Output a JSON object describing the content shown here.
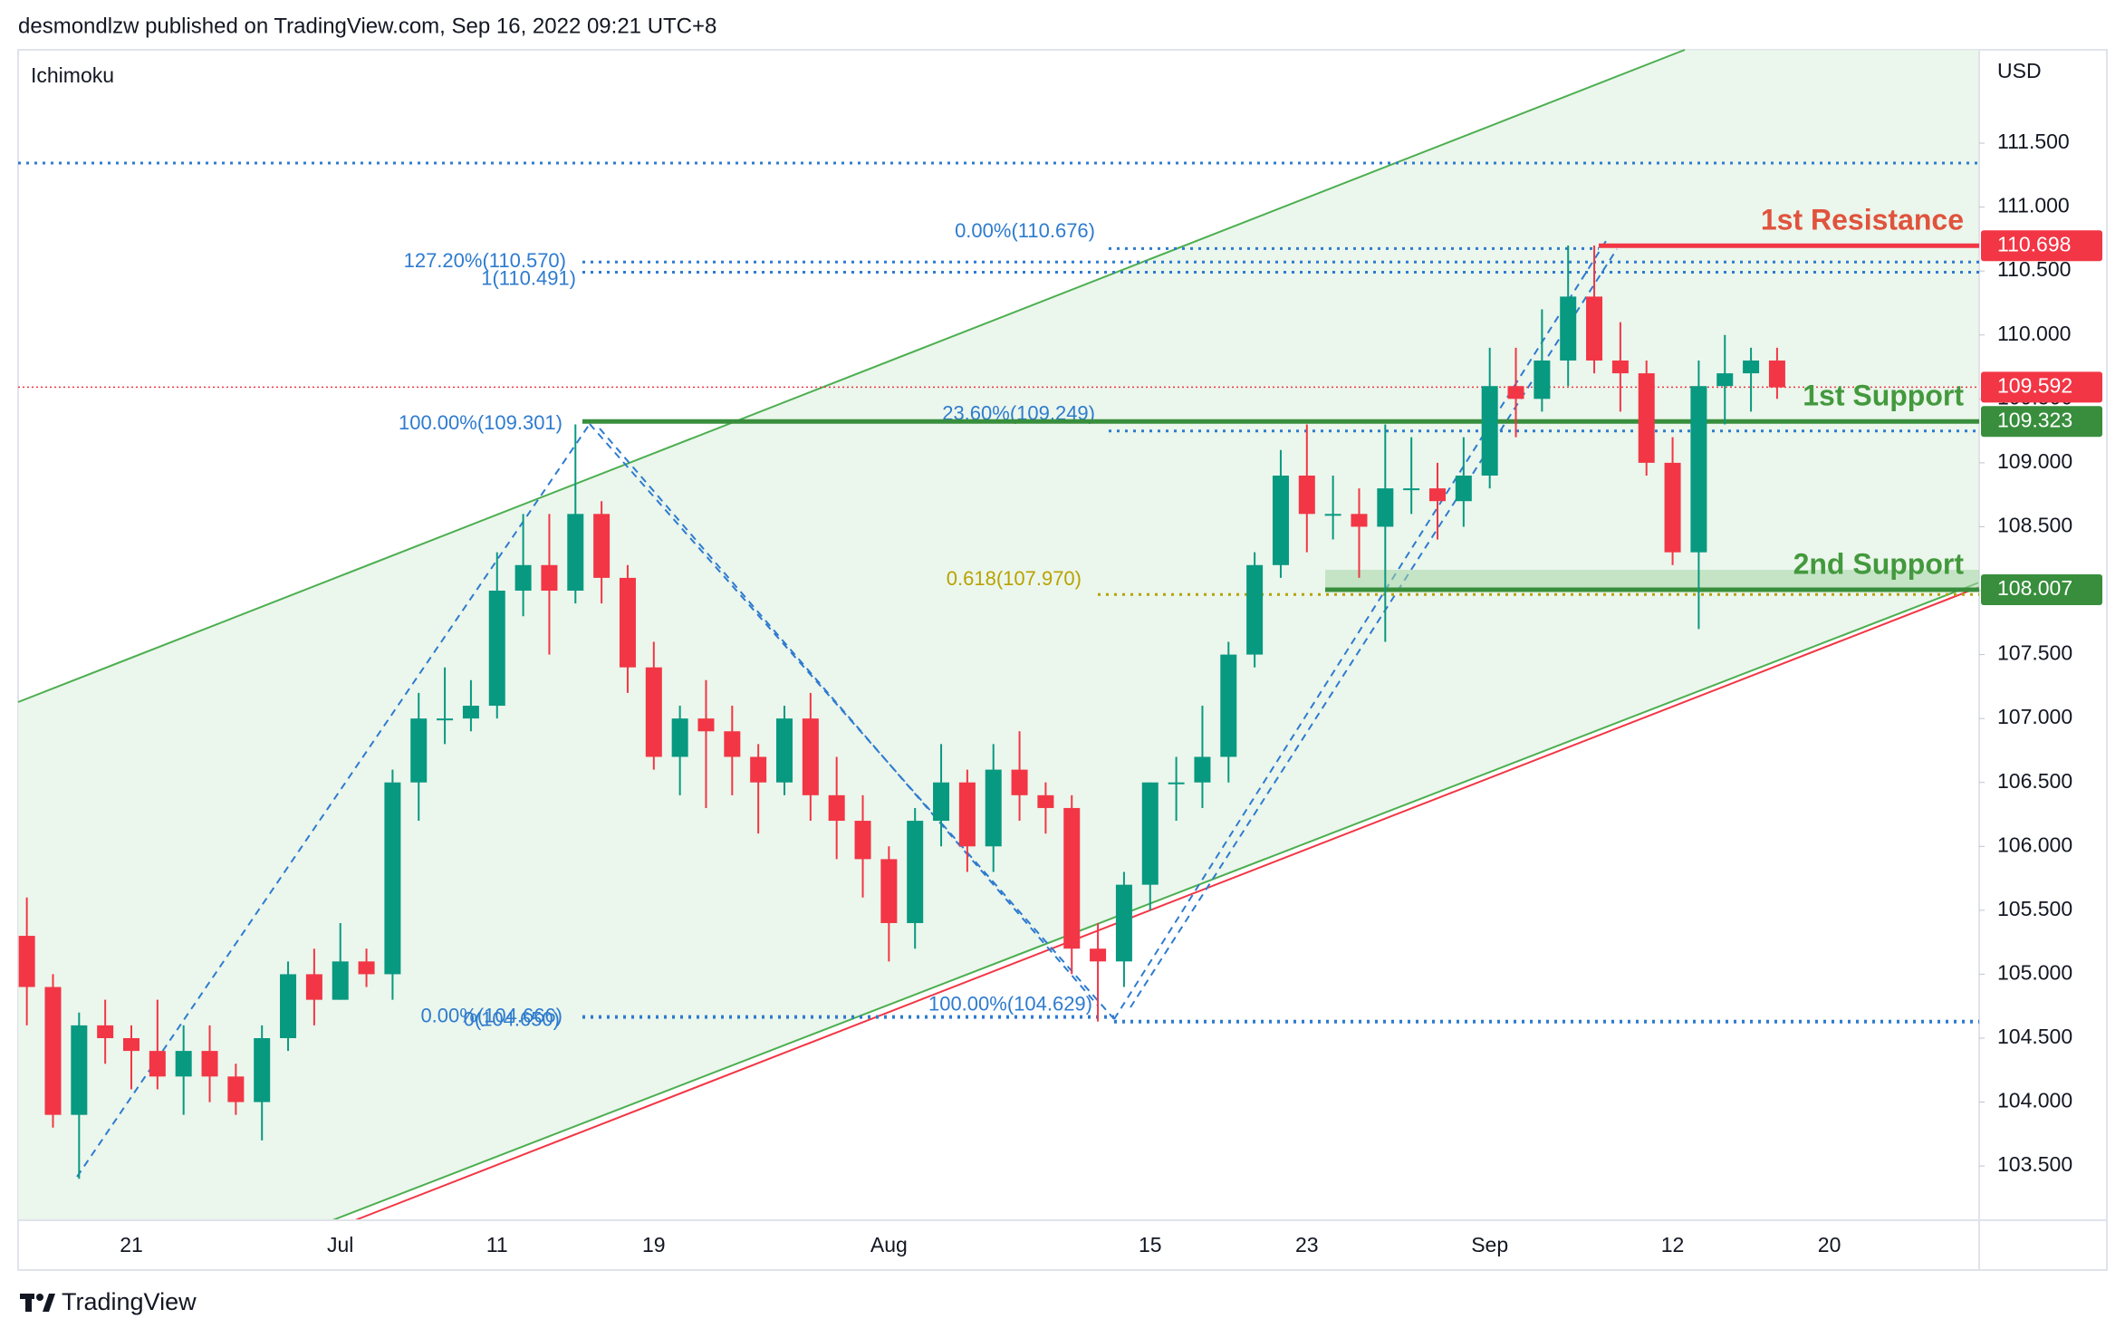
{
  "header": "desmondlzw published on TradingView.com, Sep 16, 2022 09:21 UTC+8",
  "footer": "TradingView",
  "chart_data": {
    "type": "candlestick",
    "indicator": "Ichimoku",
    "currency": "USD",
    "categories": [
      null,
      null,
      null,
      null,
      "21",
      null,
      null,
      null,
      null,
      null,
      null,
      null,
      "Jul",
      null,
      null,
      null,
      null,
      null,
      "11",
      null,
      null,
      null,
      null,
      null,
      "19",
      null,
      null,
      null,
      null,
      null,
      null,
      null,
      null,
      "Aug",
      null,
      null,
      null,
      null,
      null,
      null,
      null,
      null,
      null,
      "15",
      null,
      null,
      null,
      null,
      null,
      "23",
      null,
      null,
      null,
      null,
      null,
      null,
      "Sep",
      null,
      null,
      null,
      null,
      null,
      null,
      "12",
      null,
      null,
      null,
      null,
      null,
      "20",
      null,
      null,
      null
    ],
    "open": [
      105.3,
      104.9,
      103.9,
      104.6,
      104.5,
      104.4,
      104.2,
      104.4,
      104.2,
      104.0,
      104.5,
      105.0,
      104.8,
      105.1,
      105.0,
      106.5,
      107.0,
      107.0,
      107.1,
      108.0,
      108.2,
      108.0,
      108.6,
      108.1,
      107.4,
      106.7,
      107.0,
      106.9,
      106.7,
      106.5,
      107.0,
      106.4,
      106.2,
      105.9,
      105.4,
      106.2,
      106.5,
      106.0,
      106.6,
      106.4,
      106.3,
      105.2,
      105.1,
      105.7,
      106.5,
      106.5,
      106.7,
      107.5,
      108.2,
      108.9,
      108.6,
      108.6,
      108.5,
      108.8,
      108.8,
      108.7,
      108.9,
      109.6,
      109.5,
      109.8,
      110.3,
      109.8,
      109.7,
      109.0,
      108.3,
      109.6,
      109.7,
      109.8,
      null,
      null,
      null,
      null,
      null
    ],
    "high": [
      105.6,
      105.0,
      104.7,
      104.8,
      104.6,
      104.8,
      104.6,
      104.6,
      104.3,
      104.6,
      105.1,
      105.2,
      105.4,
      105.2,
      106.6,
      107.2,
      107.4,
      107.3,
      108.3,
      108.6,
      108.6,
      109.3,
      108.7,
      108.2,
      107.6,
      107.1,
      107.3,
      107.1,
      106.8,
      107.1,
      107.2,
      106.7,
      106.4,
      106.0,
      106.3,
      106.8,
      106.6,
      106.8,
      106.9,
      106.5,
      106.4,
      105.4,
      105.8,
      106.5,
      106.7,
      107.1,
      107.6,
      108.3,
      109.1,
      109.3,
      108.9,
      108.8,
      109.3,
      109.2,
      109.0,
      109.2,
      109.9,
      109.9,
      110.2,
      110.7,
      110.7,
      110.1,
      109.8,
      109.2,
      109.8,
      110.0,
      109.9,
      109.9,
      null,
      null,
      null,
      null,
      null
    ],
    "low": [
      104.6,
      103.8,
      103.4,
      104.3,
      104.1,
      104.1,
      103.9,
      104.0,
      103.9,
      103.7,
      104.4,
      104.6,
      104.8,
      104.9,
      104.8,
      106.2,
      106.8,
      106.9,
      107.0,
      107.8,
      107.5,
      107.9,
      107.9,
      107.2,
      106.6,
      106.4,
      106.3,
      106.4,
      106.1,
      106.4,
      106.2,
      105.9,
      105.6,
      105.1,
      105.2,
      106.0,
      105.8,
      105.8,
      106.2,
      106.1,
      105.0,
      104.63,
      104.9,
      105.5,
      106.2,
      106.3,
      106.5,
      107.4,
      108.1,
      108.3,
      108.4,
      108.1,
      107.6,
      108.6,
      108.4,
      108.5,
      108.8,
      109.2,
      109.4,
      109.6,
      109.7,
      109.4,
      108.9,
      108.2,
      107.7,
      109.3,
      109.4,
      109.5,
      null,
      null,
      null,
      null,
      null
    ],
    "close": [
      104.9,
      103.9,
      104.6,
      104.5,
      104.4,
      104.2,
      104.4,
      104.2,
      104.0,
      104.5,
      105.0,
      104.8,
      105.1,
      105.0,
      106.5,
      107.0,
      107.0,
      107.1,
      108.0,
      108.2,
      108.0,
      108.6,
      108.1,
      107.4,
      106.7,
      107.0,
      106.9,
      106.7,
      106.5,
      107.0,
      106.4,
      106.2,
      105.9,
      105.4,
      106.2,
      106.5,
      106.0,
      106.6,
      106.4,
      106.3,
      105.2,
      105.1,
      105.7,
      106.5,
      106.5,
      106.7,
      107.5,
      108.2,
      108.9,
      108.6,
      108.6,
      108.5,
      108.8,
      108.8,
      108.7,
      108.9,
      109.6,
      109.5,
      109.8,
      110.3,
      109.8,
      109.7,
      109.0,
      108.3,
      109.6,
      109.7,
      109.8,
      109.59,
      null,
      null,
      null,
      null,
      null
    ],
    "colors": {
      "up": "#089981",
      "down": "#f23645"
    },
    "ylim": [
      103.09,
      112.23
    ],
    "yticks": [
      {
        "value": 103.5,
        "label": "103.500"
      },
      {
        "value": 104,
        "label": "104.000"
      },
      {
        "value": 104.5,
        "label": "104.500"
      },
      {
        "value": 105,
        "label": "105.000"
      },
      {
        "value": 105.5,
        "label": "105.500"
      },
      {
        "value": 106,
        "label": "106.000"
      },
      {
        "value": 106.5,
        "label": "106.500"
      },
      {
        "value": 107,
        "label": "107.000"
      },
      {
        "value": 107.5,
        "label": "107.500"
      },
      {
        "value": 108,
        "label": "108.000"
      },
      {
        "value": 108.5,
        "label": "108.500"
      },
      {
        "value": 109,
        "label": "109.000"
      },
      {
        "value": 109.5,
        "label": "109.500"
      },
      {
        "value": 110,
        "label": "110.000"
      },
      {
        "value": 110.5,
        "label": "110.500"
      },
      {
        "value": 111,
        "label": "111.000"
      },
      {
        "value": 111.5,
        "label": "111.500"
      }
    ],
    "grid": false,
    "last_price": {
      "value": 109.592,
      "color": "#f23645"
    },
    "levels": [
      {
        "name": "1st Resistance",
        "value": 110.698,
        "color": "#f23645",
        "text_color": "#e0533d"
      },
      {
        "name": "1st Support",
        "value": 109.323,
        "color": "#388e3c",
        "text_color": "#43993d"
      },
      {
        "name": "2nd Support",
        "value": 108.007,
        "color": "#388e3c",
        "text_color": "#43993d"
      }
    ],
    "fib_labels": [
      {
        "label": "0.00%(110.676)",
        "value": 110.676,
        "color": "#2e7bcf"
      },
      {
        "label": "127.20%(110.570)",
        "value": 110.57,
        "color": "#2e7bcf"
      },
      {
        "label": "1(110.491)",
        "value": 110.491,
        "color": "#2e7bcf"
      },
      {
        "label": "100.00%(109.301)",
        "value": 109.301,
        "color": "#2e7bcf"
      },
      {
        "label": "23.60%(109.249)",
        "value": 109.249,
        "color": "#2e7bcf"
      },
      {
        "label": "0.618(107.970)",
        "value": 107.97,
        "color": "#b8a200"
      },
      {
        "label": "100.00%(104.629)",
        "value": 104.629,
        "color": "#2e7bcf"
      },
      {
        "label": "0.00%(104.666)",
        "value": 104.666,
        "color": "#2e7bcf"
      },
      {
        "label": "0(104.650)",
        "value": 104.65,
        "color": "#2e7bcf"
      }
    ]
  }
}
